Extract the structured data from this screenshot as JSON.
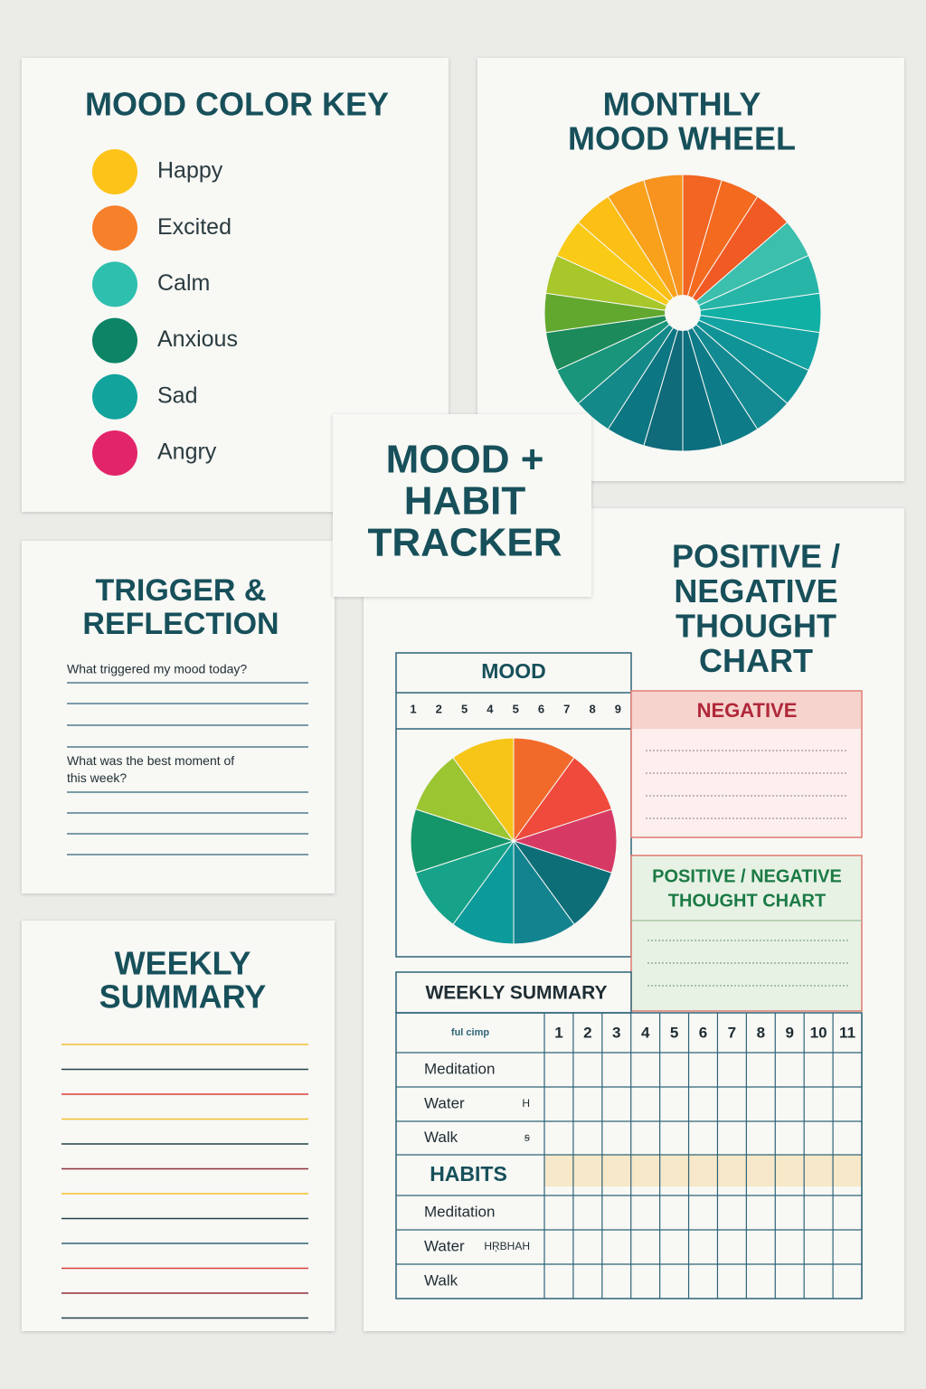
{
  "mood_key": {
    "title": "MOOD COLOR KEY",
    "items": [
      {
        "label": "Happy",
        "color": "#fcc419"
      },
      {
        "label": "Excited",
        "color": "#f7802a"
      },
      {
        "label": "Calm",
        "color": "#2fbfae"
      },
      {
        "label": "Anxious",
        "color": "#0d8466"
      },
      {
        "label": "Sad",
        "color": "#11a39c"
      },
      {
        "label": "Angry",
        "color": "#e2246a"
      }
    ]
  },
  "mood_wheel": {
    "title_lines": [
      "MONTHLY",
      "MOOD WHEEL"
    ]
  },
  "center_title": {
    "lines": [
      "MOOD +",
      "HABIT",
      "TRACKER"
    ]
  },
  "trigger": {
    "title_lines": [
      "TRIGGER &",
      "REFLECTION"
    ],
    "questions": [
      "What triggered my mood today?",
      "What was the best moment of this week?"
    ]
  },
  "weekly_card": {
    "title_lines": [
      "WEEKLY",
      "SUMMARY"
    ]
  },
  "thought_card": {
    "title_lines": [
      "POSITIVE /",
      "NEGATIVE",
      "THOUGHT",
      "CHART"
    ],
    "mood_box": {
      "title": "MOOD",
      "numbers": [
        1,
        2,
        5,
        4,
        5,
        6,
        7,
        8,
        9
      ]
    },
    "negative_box": {
      "title": "NEGATIVE"
    },
    "positive_box": {
      "title_lines": [
        "POSITIVE / NEGATIVE",
        "THOUGHT CHART"
      ]
    },
    "habit_table": {
      "title": "WEEKLY SUMMARY",
      "corner": "ful cimp",
      "columns": [
        1,
        2,
        3,
        4,
        5,
        6,
        7,
        8,
        9,
        10,
        11
      ],
      "rows_top": [
        {
          "label": "Meditation",
          "note": ""
        },
        {
          "label": "Water",
          "note": "H"
        },
        {
          "label": "Walk",
          "note": "ꞩ"
        }
      ],
      "section": "HABITS",
      "rows_bottom": [
        {
          "label": "Meditation",
          "note": ""
        },
        {
          "label": "Water",
          "note": "HŖBHAH"
        },
        {
          "label": "Walk",
          "note": ""
        }
      ]
    }
  }
}
